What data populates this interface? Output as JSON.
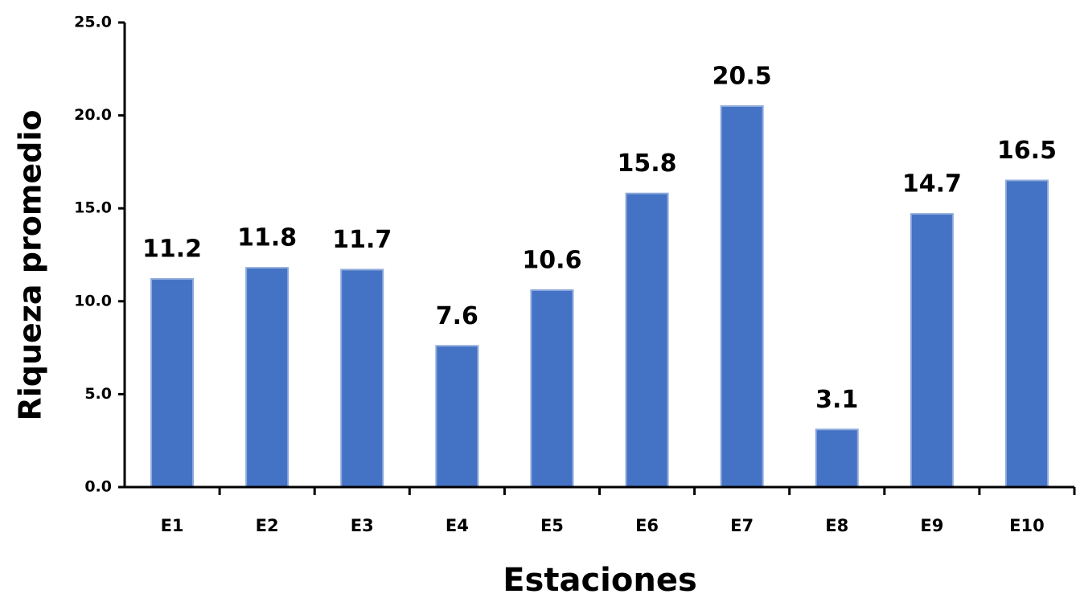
{
  "chart_data": {
    "type": "bar",
    "x_label": "Estaciones",
    "y_label": "Riqueza promedio",
    "categories": [
      "E1",
      "E2",
      "E3",
      "E4",
      "E5",
      "E6",
      "E7",
      "E8",
      "E9",
      "E10"
    ],
    "values": [
      11.2,
      11.8,
      11.7,
      7.6,
      10.6,
      15.8,
      20.5,
      3.1,
      14.7,
      16.5
    ],
    "color": "#4472c4",
    "ylim": [
      0,
      25
    ],
    "yticks": [
      {
        "value": 0,
        "label": "0.0"
      },
      {
        "value": 5,
        "label": "5.0"
      },
      {
        "value": 10,
        "label": "10.0"
      },
      {
        "value": 15,
        "label": "15.0"
      },
      {
        "value": 20,
        "label": "20.0"
      },
      {
        "value": 25,
        "label": "25.0"
      }
    ]
  }
}
